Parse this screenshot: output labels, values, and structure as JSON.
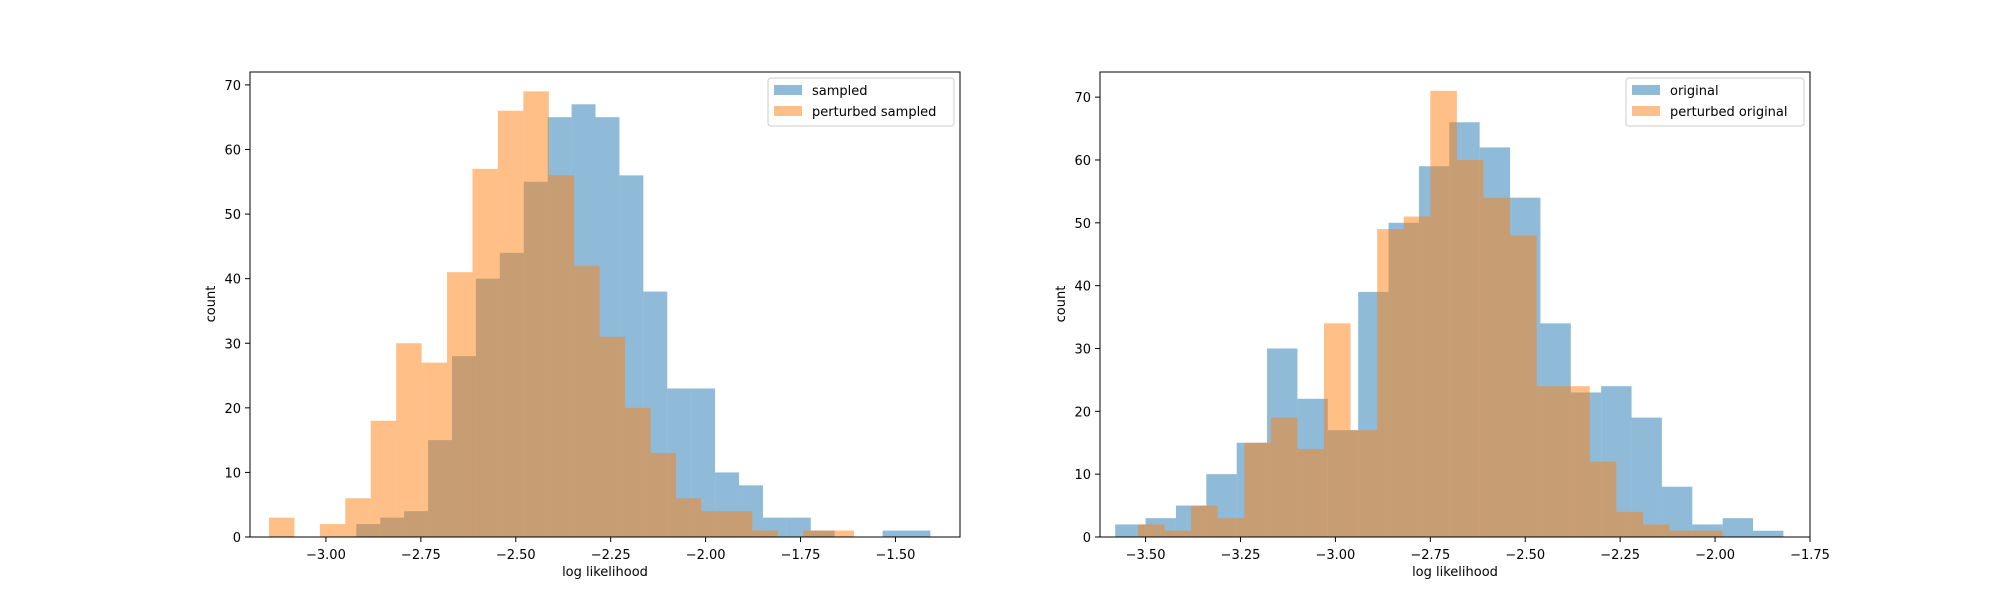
{
  "chart_data": [
    {
      "type": "histogram",
      "xlabel": "log likelihood",
      "ylabel": "count",
      "xlim": [
        -3.2,
        -1.33
      ],
      "ylim": [
        0,
        72
      ],
      "xticks": [
        -3.0,
        -2.75,
        -2.5,
        -2.25,
        -2.0,
        -1.75,
        -1.5
      ],
      "xtick_labels": [
        "−3.00",
        "−2.75",
        "−2.50",
        "−2.25",
        "−2.00",
        "−1.75",
        "−1.50"
      ],
      "yticks": [
        0,
        10,
        20,
        30,
        40,
        50,
        60,
        70
      ],
      "ytick_labels": [
        "0",
        "10",
        "20",
        "30",
        "40",
        "50",
        "60",
        "70"
      ],
      "legend_position": "top-right",
      "series": [
        {
          "name": "sampled",
          "color": "#1f77b4",
          "alpha": 0.5,
          "bin_edges": [
            -2.92,
            -2.857,
            -2.794,
            -2.731,
            -2.668,
            -2.605,
            -2.542,
            -2.479,
            -2.416,
            -2.353,
            -2.29,
            -2.227,
            -2.164,
            -2.101,
            -2.038,
            -1.975,
            -1.912,
            -1.849,
            -1.786,
            -1.723,
            -1.66,
            -1.597,
            -1.534,
            -1.471,
            -1.408,
            -1.345
          ],
          "counts": [
            2,
            3,
            4,
            15,
            28,
            40,
            44,
            55,
            65,
            67,
            65,
            56,
            38,
            23,
            23,
            10,
            8,
            3,
            3,
            1,
            0,
            0,
            1,
            1,
            0
          ]
        },
        {
          "name": "perturbed sampled",
          "color": "#ff7f0e",
          "alpha": 0.5,
          "bin_edges": [
            -3.15,
            -3.083,
            -3.016,
            -2.949,
            -2.882,
            -2.815,
            -2.748,
            -2.681,
            -2.614,
            -2.547,
            -2.48,
            -2.413,
            -2.346,
            -2.279,
            -2.212,
            -2.145,
            -2.078,
            -2.011,
            -1.944,
            -1.877,
            -1.81,
            -1.743,
            -1.676,
            -1.609
          ],
          "counts": [
            3,
            0,
            2,
            6,
            18,
            30,
            27,
            41,
            57,
            66,
            69,
            56,
            42,
            31,
            20,
            13,
            6,
            4,
            4,
            1,
            0,
            1,
            1
          ]
        }
      ]
    },
    {
      "type": "histogram",
      "xlabel": "log likelihood",
      "ylabel": "count",
      "xlim": [
        -3.62,
        -1.75
      ],
      "ylim": [
        0,
        74
      ],
      "xticks": [
        -3.5,
        -3.25,
        -3.0,
        -2.75,
        -2.5,
        -2.25,
        -2.0,
        -1.75
      ],
      "xtick_labels": [
        "−3.50",
        "−3.25",
        "−3.00",
        "−2.75",
        "−2.50",
        "−2.25",
        "−2.00",
        "−1.75"
      ],
      "yticks": [
        0,
        10,
        20,
        30,
        40,
        50,
        60,
        70
      ],
      "ytick_labels": [
        "0",
        "10",
        "20",
        "30",
        "40",
        "50",
        "60",
        "70"
      ],
      "legend_position": "top-right",
      "series": [
        {
          "name": "original",
          "color": "#1f77b4",
          "alpha": 0.5,
          "bin_edges": [
            -3.58,
            -3.5,
            -3.42,
            -3.34,
            -3.26,
            -3.18,
            -3.1,
            -3.02,
            -2.94,
            -2.86,
            -2.78,
            -2.7,
            -2.62,
            -2.54,
            -2.46,
            -2.38,
            -2.3,
            -2.22,
            -2.14,
            -2.06,
            -1.98,
            -1.9,
            -1.82
          ],
          "counts": [
            2,
            3,
            5,
            10,
            15,
            30,
            22,
            17,
            39,
            50,
            59,
            66,
            62,
            54,
            34,
            23,
            24,
            19,
            8,
            2,
            3,
            1
          ]
        },
        {
          "name": "perturbed original",
          "color": "#ff7f0e",
          "alpha": 0.5,
          "bin_edges": [
            -3.52,
            -3.45,
            -3.38,
            -3.31,
            -3.24,
            -3.17,
            -3.1,
            -3.03,
            -2.96,
            -2.89,
            -2.82,
            -2.75,
            -2.68,
            -2.61,
            -2.54,
            -2.47,
            -2.4,
            -2.33,
            -2.26,
            -2.19,
            -2.12,
            -2.05,
            -1.98,
            -1.91
          ],
          "counts": [
            2,
            1,
            5,
            3,
            15,
            19,
            14,
            34,
            17,
            49,
            51,
            71,
            60,
            54,
            48,
            24,
            24,
            12,
            4,
            2,
            1,
            1,
            0
          ]
        }
      ]
    }
  ]
}
